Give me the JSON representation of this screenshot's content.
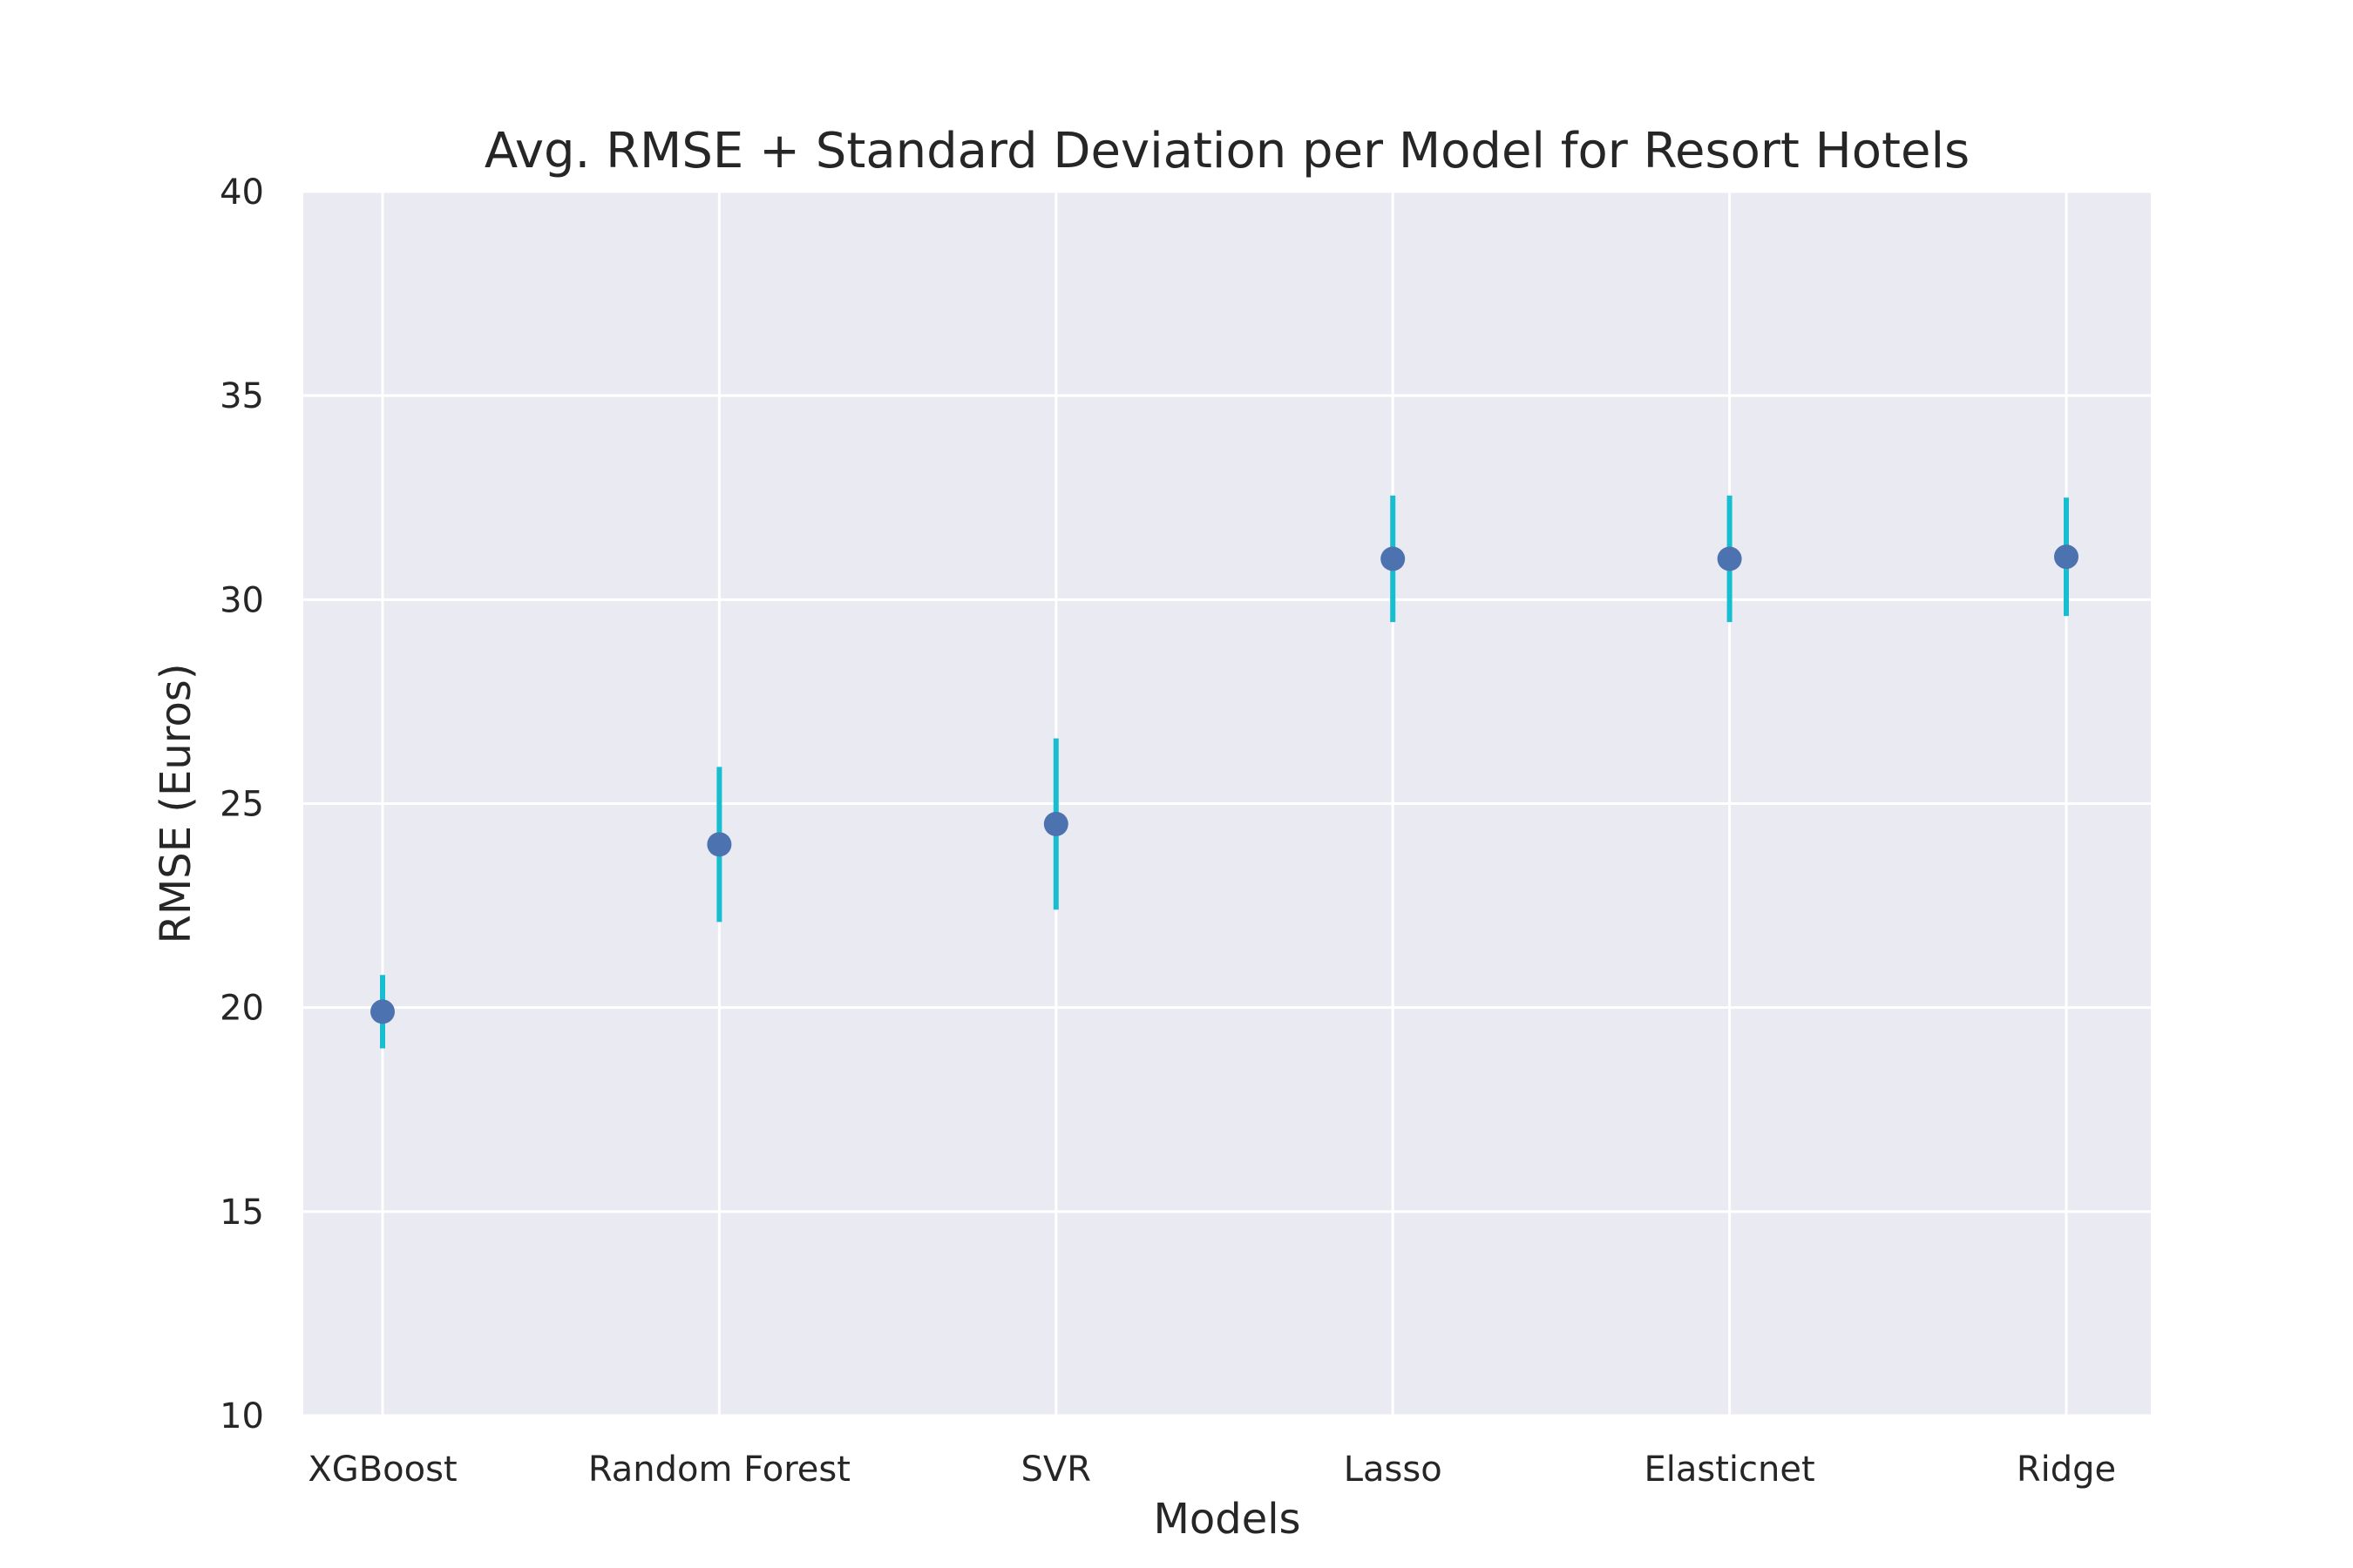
{
  "chart_data": {
    "type": "scatter",
    "title": "Avg. RMSE + Standard Deviation per Model for Resort Hotels",
    "xlabel": "Models",
    "ylabel": "RMSE (Euros)",
    "categories": [
      "XGBoost",
      "Random Forest",
      "SVR",
      "Lasso",
      "Elasticnet",
      "Ridge"
    ],
    "series": [
      {
        "values": [
          19.9,
          24.0,
          24.5,
          31.0,
          31.0,
          31.05
        ],
        "std": [
          0.9,
          1.9,
          2.1,
          1.55,
          1.55,
          1.45
        ]
      }
    ],
    "ylim": [
      10,
      40
    ],
    "yticks": [
      "10",
      "15",
      "20",
      "25",
      "30",
      "35",
      "40"
    ],
    "grid": true,
    "colors": {
      "background": "#eaeaf2",
      "grid": "#ffffff",
      "marker": "#4c72b0",
      "errorbar": "#17becf"
    }
  }
}
